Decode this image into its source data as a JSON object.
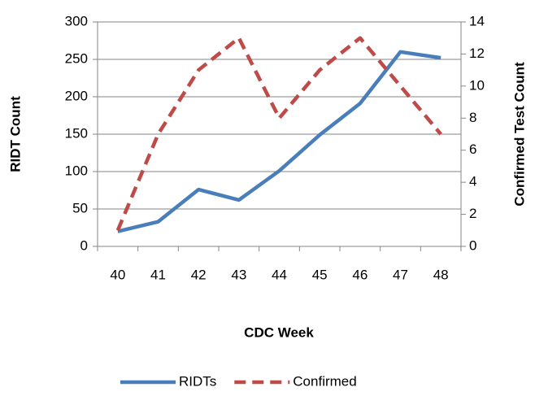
{
  "chart_data": {
    "type": "line",
    "x_label": "CDC Week",
    "y_label": "RIDT Count",
    "y2_label": "Confirmed Test Count",
    "categories": [
      "40",
      "41",
      "42",
      "43",
      "44",
      "45",
      "46",
      "47",
      "48"
    ],
    "series": [
      {
        "name": "RIDTs",
        "color": "#4a7ebb",
        "dash": false,
        "values": [
          20,
          33,
          76,
          62,
          101,
          149,
          191,
          260,
          252
        ]
      },
      {
        "name": "Confirmed",
        "color": "#be4b48",
        "dash": true,
        "axis": "y2",
        "values": [
          1,
          7,
          11,
          13,
          8,
          11,
          13,
          10,
          7
        ]
      }
    ],
    "ylim": [
      0,
      300
    ],
    "yticks": [
      0,
      50,
      100,
      150,
      200,
      250,
      300
    ],
    "y2lim": [
      0,
      14
    ],
    "y2ticks": [
      0,
      2,
      4,
      6,
      8,
      10,
      12,
      14
    ],
    "grid": true,
    "legend": "bottom"
  }
}
